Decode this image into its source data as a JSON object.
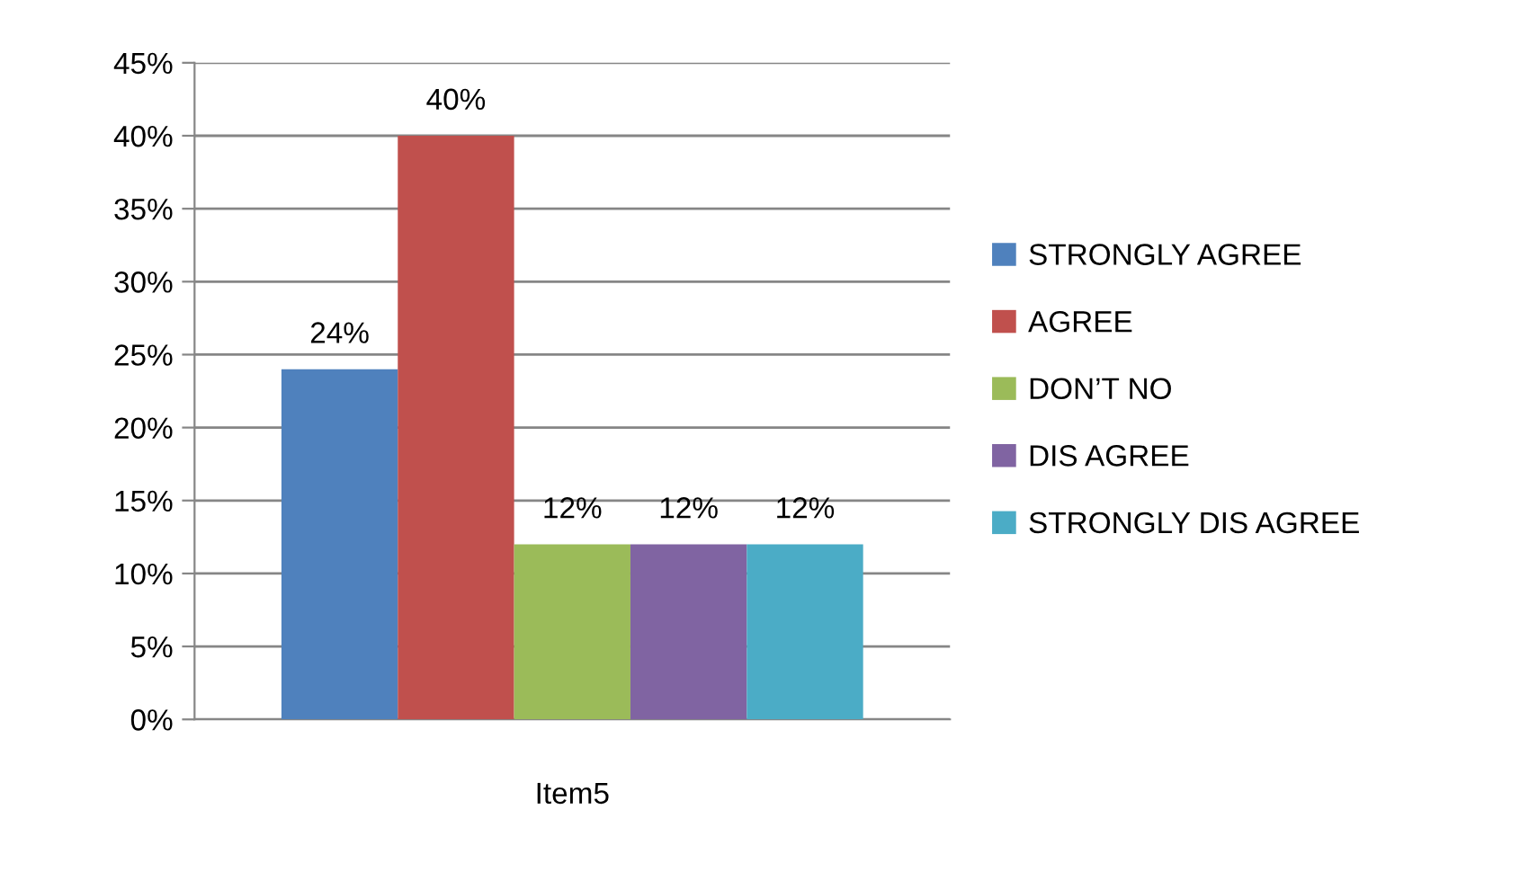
{
  "chart_data": {
    "type": "bar",
    "categories": [
      "Item5"
    ],
    "series": [
      {
        "name": "STRONGLY AGREE",
        "color": "#4f81bd",
        "values": [
          24
        ],
        "value_labels": [
          "24%"
        ]
      },
      {
        "name": "AGREE",
        "color": "#c0504d",
        "values": [
          40
        ],
        "value_labels": [
          "40%"
        ]
      },
      {
        "name": "DON’T NO",
        "color": "#9bbb59",
        "values": [
          12
        ],
        "value_labels": [
          "12%"
        ]
      },
      {
        "name": "DIS AGREE",
        "color": "#8064a2",
        "values": [
          12
        ],
        "value_labels": [
          "12%"
        ]
      },
      {
        "name": "STRONGLY DIS AGREE",
        "color": "#4bacc6",
        "values": [
          12
        ],
        "value_labels": [
          "12%"
        ]
      }
    ],
    "ylim": [
      0,
      45
    ],
    "yticks": [
      {
        "value": 0,
        "label": "0%"
      },
      {
        "value": 5,
        "label": "5%"
      },
      {
        "value": 10,
        "label": "10%"
      },
      {
        "value": 15,
        "label": "15%"
      },
      {
        "value": 20,
        "label": "20%"
      },
      {
        "value": 25,
        "label": "25%"
      },
      {
        "value": 30,
        "label": "30%"
      },
      {
        "value": 35,
        "label": "35%"
      },
      {
        "value": 40,
        "label": "40%"
      },
      {
        "value": 45,
        "label": "45%"
      }
    ],
    "grid": "y",
    "legend": "right"
  }
}
